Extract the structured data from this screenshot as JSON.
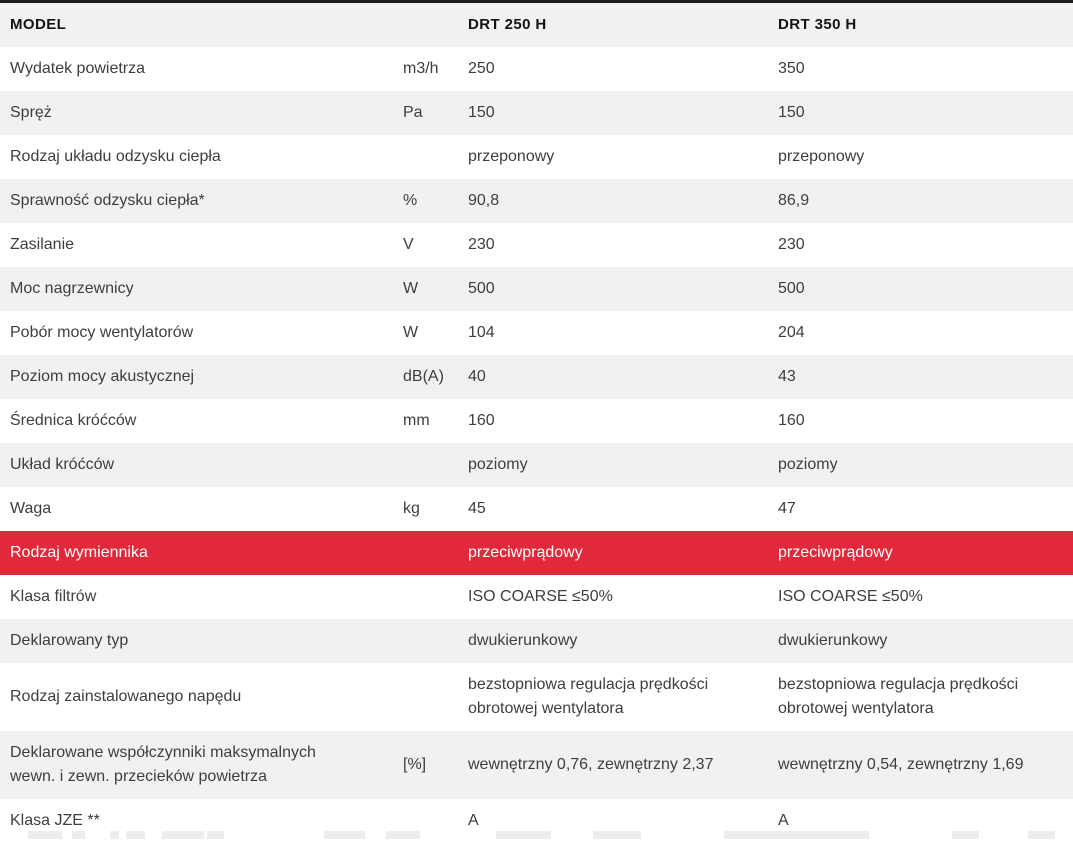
{
  "colors": {
    "accent_red": "#e2293b",
    "row_alt": "#f1f1ef"
  },
  "table": {
    "header": {
      "model_label": "MODEL",
      "unit_label": "",
      "col1": "DRT 250 H",
      "col2": "DRT 350 H"
    },
    "rows": [
      {
        "label": "Wydatek powietrza",
        "unit": "m3/h",
        "v1": "250",
        "v2": "350",
        "bg": "white",
        "tall": false
      },
      {
        "label": "Spręż",
        "unit": "Pa",
        "v1": "150",
        "v2": "150",
        "bg": "alt",
        "tall": false
      },
      {
        "label": "Rodzaj układu odzysku ciepła",
        "unit": "",
        "v1": "przeponowy",
        "v2": "przeponowy",
        "bg": "white",
        "tall": false
      },
      {
        "label": "Sprawność odzysku ciepła*",
        "unit": "%",
        "v1": "90,8",
        "v2": "86,9",
        "bg": "alt",
        "tall": false
      },
      {
        "label": "Zasilanie",
        "unit": "V",
        "v1": "230",
        "v2": "230",
        "bg": "white",
        "tall": false
      },
      {
        "label": "Moc nagrzewnicy",
        "unit": "W",
        "v1": "500",
        "v2": "500",
        "bg": "alt",
        "tall": false
      },
      {
        "label": "Pobór mocy wentylatorów",
        "unit": "W",
        "v1": "104",
        "v2": "204",
        "bg": "white",
        "tall": false
      },
      {
        "label": "Poziom mocy akustycznej",
        "unit": "dB(A)",
        "v1": "40",
        "v2": "43",
        "bg": "alt",
        "tall": false
      },
      {
        "label": "Średnica króćców",
        "unit": "mm",
        "v1": "160",
        "v2": "160",
        "bg": "white",
        "tall": false
      },
      {
        "label": "Układ króćców",
        "unit": "",
        "v1": "poziomy",
        "v2": "poziomy",
        "bg": "alt",
        "tall": false
      },
      {
        "label": "Waga",
        "unit": "kg",
        "v1": "45",
        "v2": "47",
        "bg": "white",
        "tall": false
      },
      {
        "label": "Rodzaj wymiennika",
        "unit": "",
        "v1": "przeciwprądowy",
        "v2": "przeciwprądowy",
        "bg": "red",
        "tall": false
      },
      {
        "label": "Klasa filtrów",
        "unit": "",
        "v1": "ISO COARSE ≤50%",
        "v2": "ISO COARSE ≤50%",
        "bg": "white",
        "tall": false
      },
      {
        "label": "Deklarowany typ",
        "unit": "",
        "v1": "dwukierunkowy",
        "v2": "dwukierunkowy",
        "bg": "alt",
        "tall": false
      },
      {
        "label": "Rodzaj zainstalowanego napędu",
        "unit": "",
        "v1": "bezstopniowa regulacja prędkości\nobrotowej wentylatora",
        "v2": "bezstopniowa regulacja prędkości\nobrotowej wentylatora",
        "bg": "white",
        "tall": true
      },
      {
        "label": "Deklarowane współczynniki maksymalnych\nwewn. i zewn. przecieków powietrza",
        "unit": "[%]",
        "v1": "wewnętrzny 0,76, zewnętrzny 2,37",
        "v2": "wewnętrzny 0,54, zewnętrzny 1,69",
        "bg": "alt",
        "tall": true
      },
      {
        "label": "Klasa JZE **",
        "unit": "",
        "v1": "A",
        "v2": "A",
        "bg": "white",
        "tall": false
      }
    ]
  }
}
